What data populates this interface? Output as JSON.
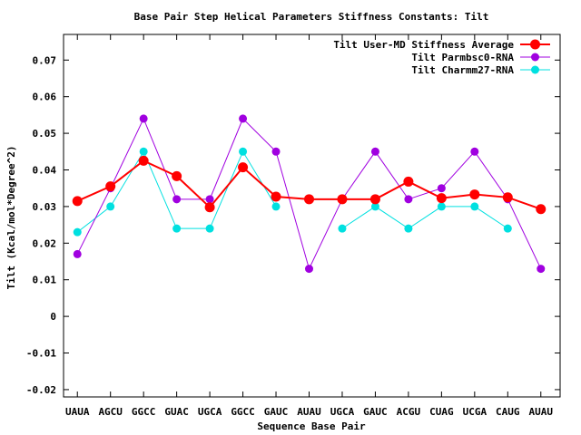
{
  "chart_data": {
    "type": "line",
    "title": "Base Pair Step Helical Parameters Stiffness Constants: Tilt",
    "xlabel": "Sequence Base Pair",
    "ylabel": "Tilt (Kcal/mol*Degree^2)",
    "ylim": [
      -0.022,
      0.077
    ],
    "yticks": [
      -0.02,
      -0.01,
      0,
      0.01,
      0.02,
      0.03,
      0.04,
      0.05,
      0.06,
      0.07
    ],
    "ytick_labels": [
      "-0.02",
      "-0.01",
      "0",
      "0.01",
      "0.02",
      "0.03",
      "0.04",
      "0.05",
      "0.06",
      "0.07"
    ],
    "categories": [
      "UAUA",
      "AGCU",
      "GGCC",
      "GUAC",
      "UGCA",
      "GGCC",
      "GAUC",
      "AUAU",
      "UGCA",
      "GAUC",
      "ACGU",
      "CUAG",
      "UCGA",
      "CAUG",
      "AUAU"
    ],
    "grid": false,
    "legend_position": "top-right",
    "series": [
      {
        "name": "Tilt User-MD Stiffness Average",
        "color": "#ff0000",
        "values": [
          0.0315,
          0.0355,
          0.0425,
          0.0383,
          0.0298,
          0.0407,
          0.0327,
          0.032,
          0.032,
          0.032,
          0.0368,
          0.0323,
          0.0333,
          0.0325,
          0.0293
        ]
      },
      {
        "name": "Tilt Parmbsc0-RNA",
        "color": "#a000e0",
        "values": [
          0.017,
          0.035,
          0.054,
          0.032,
          0.032,
          0.054,
          0.045,
          0.013,
          0.032,
          0.045,
          0.032,
          0.035,
          0.045,
          0.032,
          0.013
        ]
      },
      {
        "name": "Tilt Charmm27-RNA",
        "color": "#00e0e0",
        "values": [
          0.023,
          0.03,
          0.045,
          0.024,
          0.024,
          0.045,
          0.03,
          null,
          0.024,
          0.03,
          0.024,
          0.03,
          0.03,
          0.024,
          null
        ]
      }
    ]
  }
}
